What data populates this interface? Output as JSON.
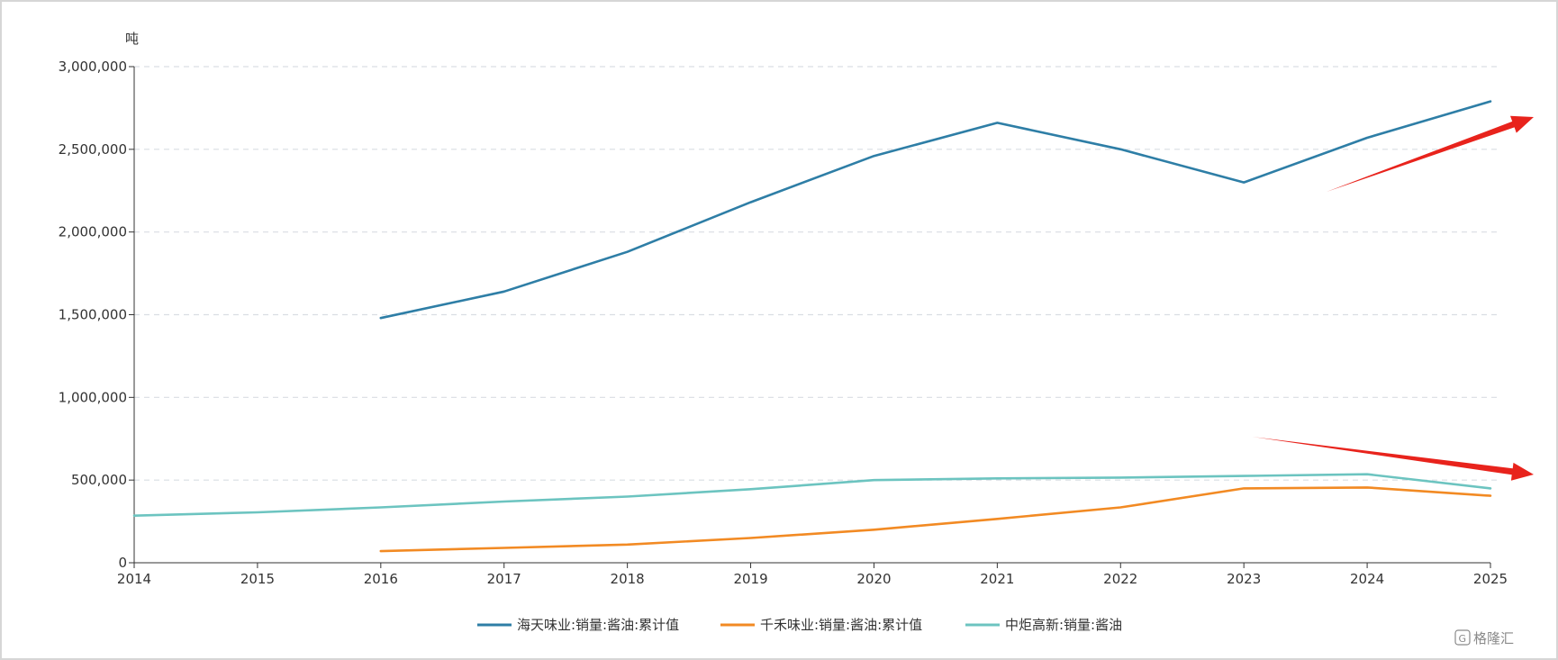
{
  "chart_data": {
    "type": "line",
    "title": "",
    "xlabel": "",
    "ylabel": "吨",
    "x": [
      "2014",
      "2015",
      "2016",
      "2017",
      "2018",
      "2019",
      "2020",
      "2021",
      "2022",
      "2023",
      "2024",
      "2025"
    ],
    "y_ticks": [
      "0",
      "500,000",
      "1,000,000",
      "1,500,000",
      "2,000,000",
      "2,500,000",
      "3,000,000"
    ],
    "ylim": [
      0,
      3000000
    ],
    "grid": "horizontal-dashed",
    "legend_position": "bottom",
    "series": [
      {
        "name": "海天味业:销量:酱油:累计值",
        "color": "#2e7ea6",
        "values": [
          null,
          null,
          1480000,
          1640000,
          1880000,
          2180000,
          2460000,
          2660000,
          2500000,
          2300000,
          2570000,
          2790000
        ]
      },
      {
        "name": "千禾味业:销量:酱油:累计值",
        "color": "#f28a23",
        "values": [
          null,
          null,
          70000,
          90000,
          110000,
          150000,
          200000,
          265000,
          335000,
          450000,
          455000,
          405000
        ]
      },
      {
        "name": "中炬高新:销量:酱油",
        "color": "#6cc4c0",
        "values": [
          285000,
          305000,
          335000,
          370000,
          400000,
          445000,
          500000,
          510000,
          515000,
          525000,
          535000,
          450000
        ]
      }
    ],
    "annotations": [
      {
        "type": "arrow",
        "color": "#e8231c",
        "direction": "up-right"
      },
      {
        "type": "arrow",
        "color": "#e8231c",
        "direction": "down-right"
      }
    ]
  },
  "watermark": {
    "text": "格隆汇",
    "icon": "g-logo-icon"
  }
}
